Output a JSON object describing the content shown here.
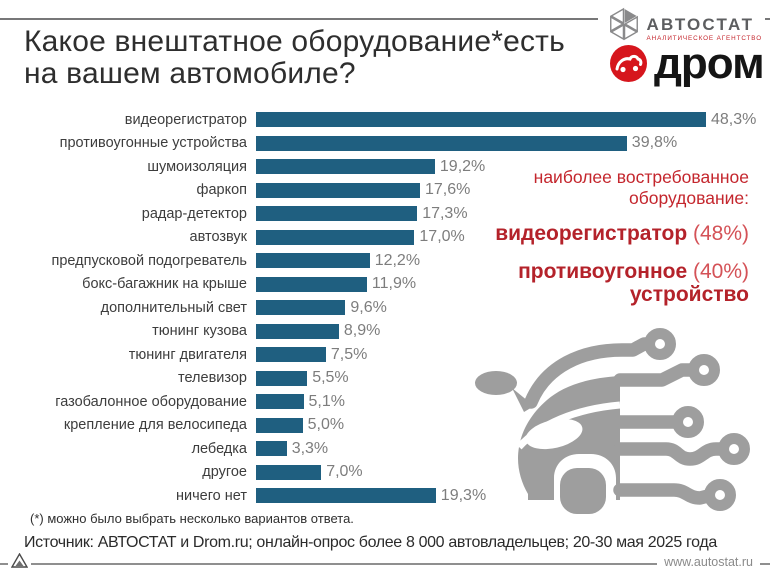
{
  "header": {
    "title_line1": "Какое внештатное оборудование*есть",
    "title_line2": "на вашем автомобиле?",
    "autostat_logo": {
      "name": "АВТОСТАТ",
      "subtitle": "АНАЛИТИЧЕСКОЕ АГЕНТСТВО",
      "mark_icon": "hexagon-of-triangles",
      "name_color": "#5d5e60",
      "subtitle_color": "#c4262d"
    },
    "drom_logo": {
      "name": "дром",
      "mark_icon": "red-circle-with-car-doodle",
      "circle_color": "#d6161d"
    }
  },
  "chart_data": {
    "type": "bar",
    "orientation": "horizontal",
    "title": "Какое внештатное оборудование* есть на вашем автомобиле?",
    "categories": [
      "видеорегистратор",
      "противоугонные устройства",
      "шумоизоляция",
      "фаркоп",
      "радар-детектор",
      "автозвук",
      "предпусковой подогреватель",
      "бокс-багажник на крыше",
      "дополнительный свет",
      "тюнинг кузова",
      "тюнинг двигателя",
      "телевизор",
      "газобалонное оборудование",
      "крепление для велосипеда",
      "лебедка",
      "другое",
      "ничего нет"
    ],
    "values": [
      48.3,
      39.8,
      19.2,
      17.6,
      17.3,
      17.0,
      12.2,
      11.9,
      9.6,
      8.9,
      7.5,
      5.5,
      5.1,
      5.0,
      3.3,
      7.0,
      19.3
    ],
    "value_labels": [
      "48,3%",
      "39,8%",
      "19,2%",
      "17,6%",
      "17,3%",
      "17,0%",
      "12,2%",
      "11,9%",
      "9,6%",
      "8,9%",
      "7,5%",
      "5,5%",
      "5,1%",
      "5,0%",
      "3,3%",
      "7,0%",
      "19,3%"
    ],
    "bar_color": "#1f5f80",
    "value_label_color": "#7d7d7d",
    "xlim": [
      0,
      50
    ],
    "grid": false,
    "legend": false
  },
  "annotation": {
    "heading_line1": "наиболее востребованное",
    "heading_line2": "оборудование:",
    "item1_bold": "видеорегистратор",
    "item1_value": " (48%)",
    "item2_bold": "противоугонное",
    "item2_value": " (40%)",
    "item2_bold_line2": "устройство",
    "color": "#c4262d"
  },
  "car_graphic_icon": "car-with-circuit-traces",
  "footnote": "(*) можно было выбрать несколько вариантов ответа.",
  "source": "Источник: АВТОСТАТ и Drom.ru; онлайн-опрос более 8 000 автовладельцев; 20-30 мая 2025 года",
  "website": "www.autostat.ru"
}
